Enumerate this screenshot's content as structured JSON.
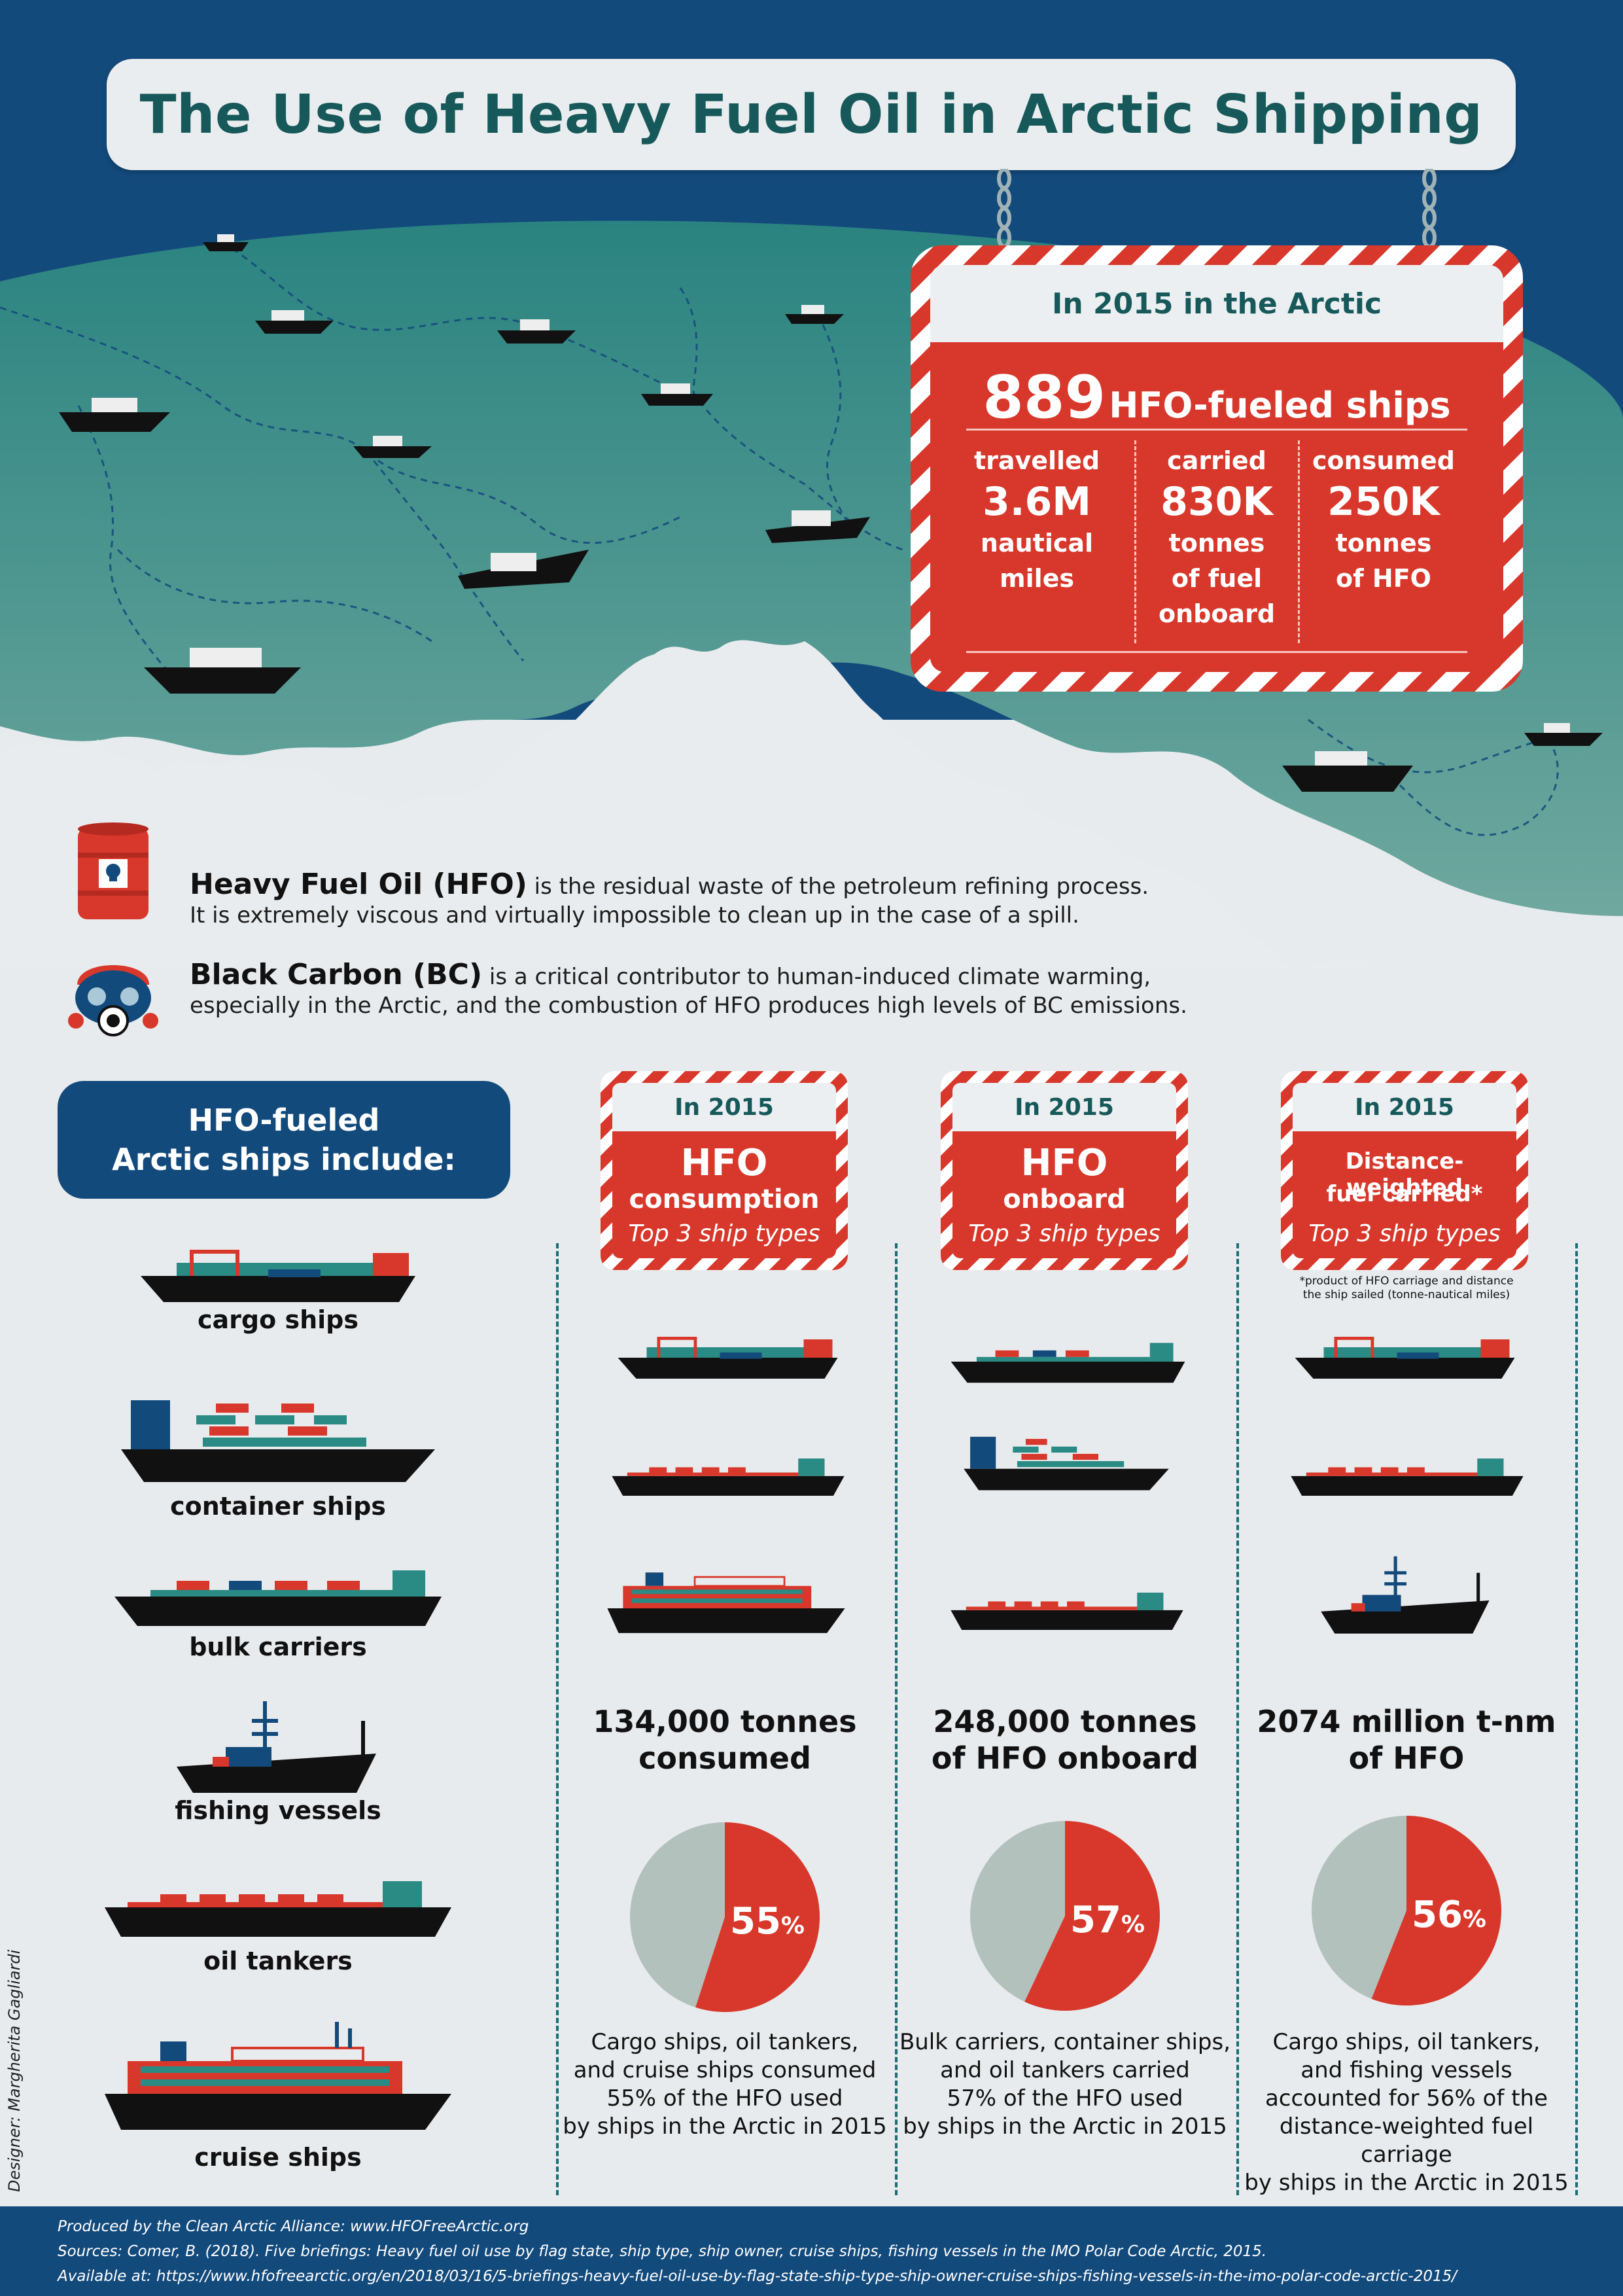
{
  "title": "The Use of Heavy Fuel Oil in Arctic Shipping",
  "arctic_sign": {
    "heading": "In 2015 in the Arctic",
    "ships_number": "889",
    "ships_label": "HFO-fueled ships",
    "stats": [
      {
        "label": "travelled",
        "value": "3.6M",
        "unit_line1": "nautical",
        "unit_line2": "miles",
        "unit_line3": ""
      },
      {
        "label": "carried",
        "value": "830K",
        "unit_line1": "tonnes",
        "unit_line2": "of fuel",
        "unit_line3": "onboard"
      },
      {
        "label": "consumed",
        "value": "250K",
        "unit_line1": "tonnes",
        "unit_line2": "of HFO",
        "unit_line3": ""
      }
    ]
  },
  "definitions": {
    "hfo_term": "Heavy Fuel Oil (HFO)",
    "hfo_text1": " is the residual waste of the petroleum refining process.",
    "hfo_text2": "It is extremely viscous and virtually impossible to clean up in the case of a spill.",
    "bc_term": "Black Carbon (BC)",
    "bc_text1": " is a critical contributor to human-induced climate warming,",
    "bc_text2": "especially in the Arctic, and the combustion of HFO produces high levels of BC emissions."
  },
  "ship_types": {
    "heading_line1": "HFO-fueled",
    "heading_line2": "Arctic ships include:",
    "items": [
      "cargo ships",
      "container ships",
      "bulk carriers",
      "fishing vessels",
      "oil tankers",
      "cruise ships"
    ]
  },
  "columns": [
    {
      "year": "In 2015",
      "title1": "HFO",
      "title2": "consumption",
      "subtitle": "Top 3 ship types",
      "note": "",
      "stat_line1": "134,000 tonnes",
      "stat_line2": "consumed",
      "percent": "55",
      "percent_sign": "%",
      "desc_lines": [
        "Cargo ships, oil tankers,",
        "and cruise ships consumed",
        "55% of the HFO used",
        "by ships in the Arctic in 2015"
      ]
    },
    {
      "year": "In 2015",
      "title1": "HFO",
      "title2": "onboard",
      "subtitle": "Top 3 ship types",
      "note": "",
      "stat_line1": "248,000 tonnes",
      "stat_line2": "of HFO onboard",
      "percent": "57",
      "percent_sign": "%",
      "desc_lines": [
        "Bulk carriers, container ships,",
        "and oil tankers carried",
        "57% of the HFO used",
        "by ships in the Arctic in 2015"
      ]
    },
    {
      "year": "In 2015",
      "title1": "Distance-weighted",
      "title2": "fuel carried*",
      "subtitle": "Top 3 ship types",
      "note_line1": "*product of HFO carriage and distance",
      "note_line2": "the ship sailed (tonne-nautical miles)",
      "stat_line1": "2074 million t-nm",
      "stat_line2": "of HFO",
      "percent": "56",
      "percent_sign": "%",
      "desc_lines": [
        "Cargo ships, oil tankers,",
        "and fishing vessels",
        "accounted for 56% of the",
        "distance-weighted fuel carriage",
        "by ships in the Arctic in 2015"
      ]
    }
  ],
  "chart_data": [
    {
      "type": "pie",
      "categories": [
        "Top 3 ship types",
        "Other"
      ],
      "values": [
        55,
        45
      ]
    },
    {
      "type": "pie",
      "categories": [
        "Top 3 ship types",
        "Other"
      ],
      "values": [
        57,
        43
      ]
    },
    {
      "type": "pie",
      "categories": [
        "Top 3 ship types",
        "Other"
      ],
      "values": [
        56,
        44
      ]
    }
  ],
  "designer": "Designer: Margherita Gagliardi",
  "footer": {
    "line1": "Produced by the Clean Arctic Alliance: www.HFOFreeArctic.org",
    "line2": "Sources: Comer, B. (2018). Five briefings: Heavy fuel oil use by flag state, ship type, ship owner, cruise ships, fishing vessels in the IMO Polar Code Arctic, 2015.",
    "line3": "Available at: https://www.hfofreearctic.org/en/2018/03/16/5-briefings-heavy-fuel-oil-use-by-flag-state-ship-type-ship-owner-cruise-ships-fishing-vessels-in-the-imo-polar-code-arctic-2015/"
  },
  "colors": {
    "navy": "#134a7c",
    "teal": "#2a8a84",
    "red": "#d8382b",
    "grey": "#b3c1bd",
    "ice": "#e9ecee"
  }
}
